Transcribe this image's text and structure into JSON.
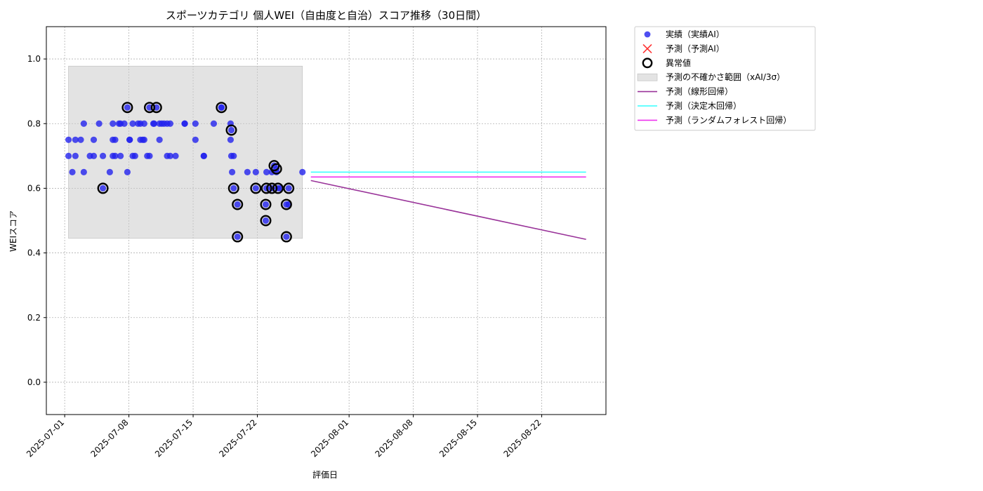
{
  "chart_data": {
    "type": "scatter",
    "title": "スポーツカテゴリ 個人WEI（自由度と自治）スコア推移（30日間）",
    "xlabel": "評価日",
    "ylabel": "WEIスコア",
    "xlim": [
      "2025-06-29T00:00",
      "2025-08-29T00:00"
    ],
    "ylim": [
      -0.1,
      1.1
    ],
    "yticks": [
      "0.0",
      "0.2",
      "0.4",
      "0.6",
      "0.8",
      "1.0"
    ],
    "xticks": [
      "2025-07-01",
      "2025-07-08",
      "2025-07-15",
      "2025-07-22",
      "2025-08-01",
      "2025-08-08",
      "2025-08-15",
      "2025-08-22"
    ],
    "grid": true,
    "legend_position": "outside upper right",
    "uncertainty_band": {
      "x_start": "2025-07-01T10:00",
      "x_end": "2025-07-26T22:00",
      "y_low": 0.445,
      "y_high": 0.978,
      "color": "#cccccc"
    },
    "series": [
      {
        "name": "実績（実績AI）",
        "kind": "scatter",
        "color": "#2222ee",
        "points": [
          [
            "2025-07-01T10:00",
            0.75
          ],
          [
            "2025-07-01T10:00",
            0.7
          ],
          [
            "2025-07-01T20:00",
            0.65
          ],
          [
            "2025-07-02T04:00",
            0.75
          ],
          [
            "2025-07-02T04:00",
            0.7
          ],
          [
            "2025-07-02T18:00",
            0.75
          ],
          [
            "2025-07-03T02:00",
            0.8
          ],
          [
            "2025-07-03T02:00",
            0.65
          ],
          [
            "2025-07-03T18:00",
            0.7
          ],
          [
            "2025-07-04T04:00",
            0.75
          ],
          [
            "2025-07-04T04:00",
            0.7
          ],
          [
            "2025-07-04T18:00",
            0.8
          ],
          [
            "2025-07-05T04:00",
            0.7
          ],
          [
            "2025-07-05T04:00",
            0.6
          ],
          [
            "2025-07-05T22:00",
            0.65
          ],
          [
            "2025-07-06T06:00",
            0.75
          ],
          [
            "2025-07-06T06:00",
            0.7
          ],
          [
            "2025-07-06T06:00",
            0.8
          ],
          [
            "2025-07-06T12:00",
            0.75
          ],
          [
            "2025-07-06T12:00",
            0.7
          ],
          [
            "2025-07-06T22:00",
            0.8
          ],
          [
            "2025-07-07T02:00",
            0.7
          ],
          [
            "2025-07-07T02:00",
            0.8
          ],
          [
            "2025-07-07T12:00",
            0.8
          ],
          [
            "2025-07-07T20:00",
            0.85
          ],
          [
            "2025-07-07T20:00",
            0.65
          ],
          [
            "2025-07-08T02:00",
            0.75
          ],
          [
            "2025-07-08T02:00",
            0.75
          ],
          [
            "2025-07-08T10:00",
            0.8
          ],
          [
            "2025-07-08T10:00",
            0.7
          ],
          [
            "2025-07-08T16:00",
            0.7
          ],
          [
            "2025-07-09T00:00",
            0.8
          ],
          [
            "2025-07-09T06:00",
            0.75
          ],
          [
            "2025-07-09T06:00",
            0.8
          ],
          [
            "2025-07-09T12:00",
            0.75
          ],
          [
            "2025-07-09T16:00",
            0.75
          ],
          [
            "2025-07-09T16:00",
            0.8
          ],
          [
            "2025-07-10T00:00",
            0.7
          ],
          [
            "2025-07-10T06:00",
            0.7
          ],
          [
            "2025-07-10T06:00",
            0.85
          ],
          [
            "2025-07-10T16:00",
            0.8
          ],
          [
            "2025-07-10T18:00",
            0.8
          ],
          [
            "2025-07-11T00:00",
            0.85
          ],
          [
            "2025-07-11T08:00",
            0.8
          ],
          [
            "2025-07-11T08:00",
            0.75
          ],
          [
            "2025-07-11T14:00",
            0.8
          ],
          [
            "2025-07-11T20:00",
            0.8
          ],
          [
            "2025-07-12T04:00",
            0.8
          ],
          [
            "2025-07-12T04:00",
            0.7
          ],
          [
            "2025-07-12T12:00",
            0.8
          ],
          [
            "2025-07-12T12:00",
            0.7
          ],
          [
            "2025-07-13T02:00",
            0.7
          ],
          [
            "2025-07-14T02:00",
            0.8
          ],
          [
            "2025-07-14T02:00",
            0.8
          ],
          [
            "2025-07-15T06:00",
            0.75
          ],
          [
            "2025-07-15T06:00",
            0.8
          ],
          [
            "2025-07-16T04:00",
            0.7
          ],
          [
            "2025-07-16T04:00",
            0.7
          ],
          [
            "2025-07-17T06:00",
            0.8
          ],
          [
            "2025-07-18T02:00",
            0.85
          ],
          [
            "2025-07-18T02:00",
            0.85
          ],
          [
            "2025-07-19T02:00",
            0.8
          ],
          [
            "2025-07-19T02:00",
            0.75
          ],
          [
            "2025-07-19T04:00",
            0.78
          ],
          [
            "2025-07-19T04:00",
            0.7
          ],
          [
            "2025-07-19T06:00",
            0.65
          ],
          [
            "2025-07-19T10:00",
            0.7
          ],
          [
            "2025-07-19T10:00",
            0.6
          ],
          [
            "2025-07-19T20:00",
            0.55
          ],
          [
            "2025-07-19T20:00",
            0.45
          ],
          [
            "2025-07-20T22:00",
            0.65
          ],
          [
            "2025-07-21T20:00",
            0.6
          ],
          [
            "2025-07-21T20:00",
            0.65
          ],
          [
            "2025-07-22T22:00",
            0.55
          ],
          [
            "2025-07-22T22:00",
            0.5
          ],
          [
            "2025-07-23T00:00",
            0.6
          ],
          [
            "2025-07-23T00:00",
            0.65
          ],
          [
            "2025-07-23T14:00",
            0.6
          ],
          [
            "2025-07-23T14:00",
            0.65
          ],
          [
            "2025-07-23T20:00",
            0.67
          ],
          [
            "2025-07-24T02:00",
            0.66
          ],
          [
            "2025-07-24T02:00",
            0.65
          ],
          [
            "2025-07-24T06:00",
            0.6
          ],
          [
            "2025-07-24T12:00",
            0.6
          ],
          [
            "2025-07-25T04:00",
            0.55
          ],
          [
            "2025-07-25T04:00",
            0.45
          ],
          [
            "2025-07-25T10:00",
            0.55
          ],
          [
            "2025-07-25T10:00",
            0.6
          ],
          [
            "2025-07-26T22:00",
            0.65
          ]
        ]
      },
      {
        "name": "予測（予測AI）",
        "kind": "marker_x",
        "color": "#ff3333",
        "points": []
      },
      {
        "name": "異常値",
        "kind": "ring",
        "color": "#000000",
        "points": [
          [
            "2025-07-05T04:00",
            0.6
          ],
          [
            "2025-07-07T20:00",
            0.85
          ],
          [
            "2025-07-10T06:00",
            0.85
          ],
          [
            "2025-07-11T00:00",
            0.85
          ],
          [
            "2025-07-18T02:00",
            0.85
          ],
          [
            "2025-07-19T04:00",
            0.78
          ],
          [
            "2025-07-19T10:00",
            0.6
          ],
          [
            "2025-07-19T20:00",
            0.55
          ],
          [
            "2025-07-19T20:00",
            0.45
          ],
          [
            "2025-07-21T20:00",
            0.6
          ],
          [
            "2025-07-22T22:00",
            0.55
          ],
          [
            "2025-07-22T22:00",
            0.5
          ],
          [
            "2025-07-23T00:00",
            0.6
          ],
          [
            "2025-07-23T14:00",
            0.6
          ],
          [
            "2025-07-23T20:00",
            0.67
          ],
          [
            "2025-07-24T02:00",
            0.66
          ],
          [
            "2025-07-24T06:00",
            0.6
          ],
          [
            "2025-07-25T04:00",
            0.55
          ],
          [
            "2025-07-25T04:00",
            0.45
          ],
          [
            "2025-07-25T10:00",
            0.6
          ]
        ]
      },
      {
        "name": "予測の不確かさ範囲（xAI/3σ）",
        "kind": "band",
        "color": "#cccccc"
      },
      {
        "name": "予測（線形回帰）",
        "kind": "line",
        "color": "#993399",
        "points": [
          [
            "2025-07-27T20:00",
            0.624
          ],
          [
            "2025-08-26T20:00",
            0.442
          ]
        ]
      },
      {
        "name": "予測（決定木回帰）",
        "kind": "line",
        "color": "#33ffff",
        "points": [
          [
            "2025-07-27T20:00",
            0.65
          ],
          [
            "2025-08-26T20:00",
            0.65
          ]
        ]
      },
      {
        "name": "予測（ランダムフォレスト回帰）",
        "kind": "line",
        "color": "#ee33ee",
        "points": [
          [
            "2025-07-27T20:00",
            0.635
          ],
          [
            "2025-08-26T20:00",
            0.635
          ]
        ]
      }
    ]
  }
}
